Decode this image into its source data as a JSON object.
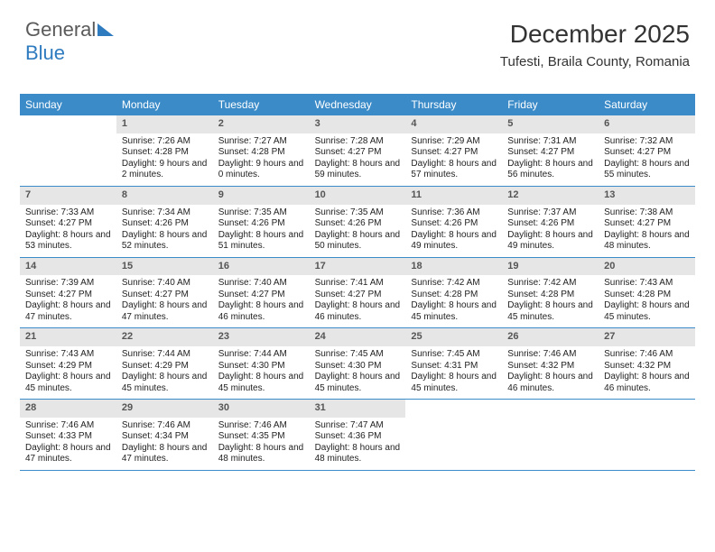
{
  "brand": {
    "part1": "General",
    "part2": "Blue"
  },
  "title": "December 2025",
  "location": "Tufesti, Braila County, Romania",
  "colors": {
    "header_bg": "#3b8bc8",
    "daynum_bg": "#e6e6e6",
    "rule": "#3b8bc8"
  },
  "day_headers": [
    "Sunday",
    "Monday",
    "Tuesday",
    "Wednesday",
    "Thursday",
    "Friday",
    "Saturday"
  ],
  "weeks": [
    [
      {
        "n": "",
        "sr": "",
        "ss": "",
        "dl": ""
      },
      {
        "n": "1",
        "sr": "Sunrise: 7:26 AM",
        "ss": "Sunset: 4:28 PM",
        "dl": "Daylight: 9 hours and 2 minutes."
      },
      {
        "n": "2",
        "sr": "Sunrise: 7:27 AM",
        "ss": "Sunset: 4:28 PM",
        "dl": "Daylight: 9 hours and 0 minutes."
      },
      {
        "n": "3",
        "sr": "Sunrise: 7:28 AM",
        "ss": "Sunset: 4:27 PM",
        "dl": "Daylight: 8 hours and 59 minutes."
      },
      {
        "n": "4",
        "sr": "Sunrise: 7:29 AM",
        "ss": "Sunset: 4:27 PM",
        "dl": "Daylight: 8 hours and 57 minutes."
      },
      {
        "n": "5",
        "sr": "Sunrise: 7:31 AM",
        "ss": "Sunset: 4:27 PM",
        "dl": "Daylight: 8 hours and 56 minutes."
      },
      {
        "n": "6",
        "sr": "Sunrise: 7:32 AM",
        "ss": "Sunset: 4:27 PM",
        "dl": "Daylight: 8 hours and 55 minutes."
      }
    ],
    [
      {
        "n": "7",
        "sr": "Sunrise: 7:33 AM",
        "ss": "Sunset: 4:27 PM",
        "dl": "Daylight: 8 hours and 53 minutes."
      },
      {
        "n": "8",
        "sr": "Sunrise: 7:34 AM",
        "ss": "Sunset: 4:26 PM",
        "dl": "Daylight: 8 hours and 52 minutes."
      },
      {
        "n": "9",
        "sr": "Sunrise: 7:35 AM",
        "ss": "Sunset: 4:26 PM",
        "dl": "Daylight: 8 hours and 51 minutes."
      },
      {
        "n": "10",
        "sr": "Sunrise: 7:35 AM",
        "ss": "Sunset: 4:26 PM",
        "dl": "Daylight: 8 hours and 50 minutes."
      },
      {
        "n": "11",
        "sr": "Sunrise: 7:36 AM",
        "ss": "Sunset: 4:26 PM",
        "dl": "Daylight: 8 hours and 49 minutes."
      },
      {
        "n": "12",
        "sr": "Sunrise: 7:37 AM",
        "ss": "Sunset: 4:26 PM",
        "dl": "Daylight: 8 hours and 49 minutes."
      },
      {
        "n": "13",
        "sr": "Sunrise: 7:38 AM",
        "ss": "Sunset: 4:27 PM",
        "dl": "Daylight: 8 hours and 48 minutes."
      }
    ],
    [
      {
        "n": "14",
        "sr": "Sunrise: 7:39 AM",
        "ss": "Sunset: 4:27 PM",
        "dl": "Daylight: 8 hours and 47 minutes."
      },
      {
        "n": "15",
        "sr": "Sunrise: 7:40 AM",
        "ss": "Sunset: 4:27 PM",
        "dl": "Daylight: 8 hours and 47 minutes."
      },
      {
        "n": "16",
        "sr": "Sunrise: 7:40 AM",
        "ss": "Sunset: 4:27 PM",
        "dl": "Daylight: 8 hours and 46 minutes."
      },
      {
        "n": "17",
        "sr": "Sunrise: 7:41 AM",
        "ss": "Sunset: 4:27 PM",
        "dl": "Daylight: 8 hours and 46 minutes."
      },
      {
        "n": "18",
        "sr": "Sunrise: 7:42 AM",
        "ss": "Sunset: 4:28 PM",
        "dl": "Daylight: 8 hours and 45 minutes."
      },
      {
        "n": "19",
        "sr": "Sunrise: 7:42 AM",
        "ss": "Sunset: 4:28 PM",
        "dl": "Daylight: 8 hours and 45 minutes."
      },
      {
        "n": "20",
        "sr": "Sunrise: 7:43 AM",
        "ss": "Sunset: 4:28 PM",
        "dl": "Daylight: 8 hours and 45 minutes."
      }
    ],
    [
      {
        "n": "21",
        "sr": "Sunrise: 7:43 AM",
        "ss": "Sunset: 4:29 PM",
        "dl": "Daylight: 8 hours and 45 minutes."
      },
      {
        "n": "22",
        "sr": "Sunrise: 7:44 AM",
        "ss": "Sunset: 4:29 PM",
        "dl": "Daylight: 8 hours and 45 minutes."
      },
      {
        "n": "23",
        "sr": "Sunrise: 7:44 AM",
        "ss": "Sunset: 4:30 PM",
        "dl": "Daylight: 8 hours and 45 minutes."
      },
      {
        "n": "24",
        "sr": "Sunrise: 7:45 AM",
        "ss": "Sunset: 4:30 PM",
        "dl": "Daylight: 8 hours and 45 minutes."
      },
      {
        "n": "25",
        "sr": "Sunrise: 7:45 AM",
        "ss": "Sunset: 4:31 PM",
        "dl": "Daylight: 8 hours and 45 minutes."
      },
      {
        "n": "26",
        "sr": "Sunrise: 7:46 AM",
        "ss": "Sunset: 4:32 PM",
        "dl": "Daylight: 8 hours and 46 minutes."
      },
      {
        "n": "27",
        "sr": "Sunrise: 7:46 AM",
        "ss": "Sunset: 4:32 PM",
        "dl": "Daylight: 8 hours and 46 minutes."
      }
    ],
    [
      {
        "n": "28",
        "sr": "Sunrise: 7:46 AM",
        "ss": "Sunset: 4:33 PM",
        "dl": "Daylight: 8 hours and 47 minutes."
      },
      {
        "n": "29",
        "sr": "Sunrise: 7:46 AM",
        "ss": "Sunset: 4:34 PM",
        "dl": "Daylight: 8 hours and 47 minutes."
      },
      {
        "n": "30",
        "sr": "Sunrise: 7:46 AM",
        "ss": "Sunset: 4:35 PM",
        "dl": "Daylight: 8 hours and 48 minutes."
      },
      {
        "n": "31",
        "sr": "Sunrise: 7:47 AM",
        "ss": "Sunset: 4:36 PM",
        "dl": "Daylight: 8 hours and 48 minutes."
      },
      {
        "n": "",
        "sr": "",
        "ss": "",
        "dl": ""
      },
      {
        "n": "",
        "sr": "",
        "ss": "",
        "dl": ""
      },
      {
        "n": "",
        "sr": "",
        "ss": "",
        "dl": ""
      }
    ]
  ]
}
